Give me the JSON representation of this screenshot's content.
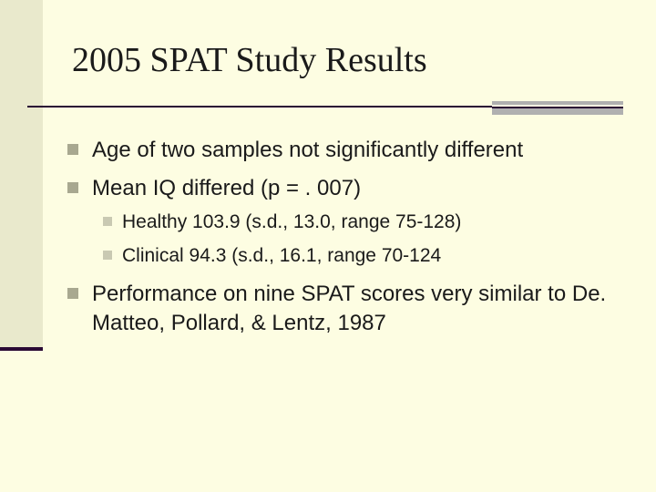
{
  "slide": {
    "title": "2005 SPAT Study Results",
    "bullets": [
      {
        "text": "Age of two samples not significantly different"
      },
      {
        "text": "Mean IQ differed (p = . 007)"
      },
      {
        "text": "Healthy 103.9 (s.d., 13.0, range 75-128)"
      },
      {
        "text": "Clinical 94.3 (s.d., 16.1, range 70-124"
      },
      {
        "text": "Performance on nine SPAT scores very similar to De. Matteo, Pollard, & Lentz, 1987"
      }
    ]
  },
  "colors": {
    "background": "#fdfde2",
    "left_band": "#e9e9cc",
    "accent_dark": "#2a0a35",
    "accent_gray": "#b0b0b0",
    "bullet_primary": "#a8a890",
    "bullet_secondary": "#c9c9b2",
    "text": "#1a1a1a"
  }
}
